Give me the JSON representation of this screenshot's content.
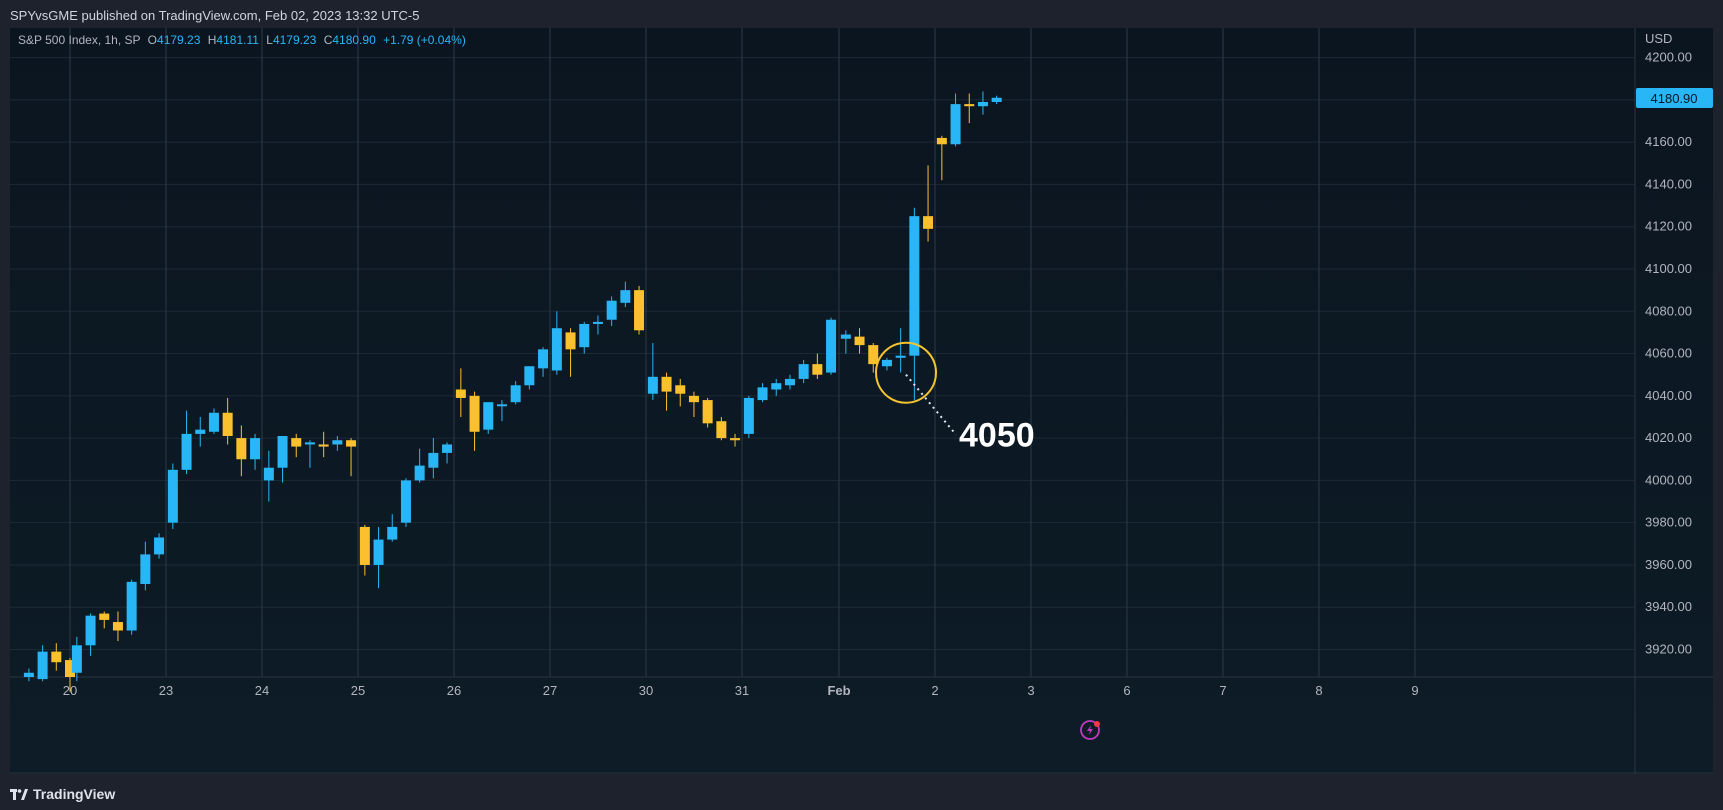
{
  "header": {
    "published_by": "SPYvsGME published on TradingView.com, Feb 02, 2023 13:32 UTC-5"
  },
  "legend": {
    "symbol": "S&P 500 Index, 1h, SP",
    "open_label": "O",
    "open": "4179.23",
    "high_label": "H",
    "high": "4181.11",
    "low_label": "L",
    "low": "4179.23",
    "close_label": "C",
    "close": "4180.90",
    "change": "+1.79 (+0.04%)"
  },
  "footer": {
    "brand": "TradingView"
  },
  "colors": {
    "up": "#29b6f6",
    "down": "#fbc02d",
    "annotation_circle": "#f4c430",
    "price_tag": "#29b6f6"
  },
  "icons": [
    "lightning-icon",
    "tradingview-logo-icon"
  ],
  "chart_data": {
    "type": "candlestick",
    "currency": "USD",
    "ylim": [
      3907,
      4214
    ],
    "y_ticks": [
      "4200.00",
      "4180.00",
      "4160.00",
      "4140.00",
      "4120.00",
      "4100.00",
      "4080.00",
      "4060.00",
      "4040.00",
      "4020.00",
      "4000.00",
      "3980.00",
      "3960.00",
      "3940.00",
      "3920.00"
    ],
    "x_ticks": [
      "20",
      "23",
      "24",
      "25",
      "26",
      "27",
      "30",
      "31",
      "Feb",
      "2",
      "3",
      "6",
      "7",
      "8",
      "9"
    ],
    "last_price": "4180.90",
    "annotation": {
      "text": "4050",
      "price": 4050
    },
    "grid": true,
    "series": [
      {
        "o": 3907,
        "h": 3911,
        "l": 3905,
        "c": 3909
      },
      {
        "o": 3906,
        "h": 3922,
        "l": 3905,
        "c": 3919
      },
      {
        "o": 3919,
        "h": 3923,
        "l": 3910,
        "c": 3914
      },
      {
        "o": 3915,
        "h": 3916,
        "l": 3900,
        "c": 3907
      },
      {
        "o": 3909,
        "h": 3926,
        "l": 3905,
        "c": 3922
      },
      {
        "o": 3922,
        "h": 3937,
        "l": 3917,
        "c": 3936
      },
      {
        "o": 3937,
        "h": 3938,
        "l": 3930,
        "c": 3934
      },
      {
        "o": 3933,
        "h": 3938,
        "l": 3924,
        "c": 3929
      },
      {
        "o": 3929,
        "h": 3953,
        "l": 3927,
        "c": 3952
      },
      {
        "o": 3951,
        "h": 3971,
        "l": 3948,
        "c": 3965
      },
      {
        "o": 3965,
        "h": 3975,
        "l": 3963,
        "c": 3973
      },
      {
        "o": 3980,
        "h": 4008,
        "l": 3977,
        "c": 4005
      },
      {
        "o": 4005,
        "h": 4033,
        "l": 4003,
        "c": 4022
      },
      {
        "o": 4022,
        "h": 4030,
        "l": 4016,
        "c": 4024
      },
      {
        "o": 4023,
        "h": 4034,
        "l": 4022,
        "c": 4032
      },
      {
        "o": 4032,
        "h": 4039,
        "l": 4017,
        "c": 4021
      },
      {
        "o": 4020,
        "h": 4026,
        "l": 4002,
        "c": 4010
      },
      {
        "o": 4010,
        "h": 4022,
        "l": 4005,
        "c": 4020
      },
      {
        "o": 4000,
        "h": 4014,
        "l": 3990,
        "c": 4006
      },
      {
        "o": 4006,
        "h": 4021,
        "l": 3999,
        "c": 4021
      },
      {
        "o": 4020,
        "h": 4022,
        "l": 4011,
        "c": 4016
      },
      {
        "o": 4017,
        "h": 4019,
        "l": 4006,
        "c": 4018
      },
      {
        "o": 4017,
        "h": 4023,
        "l": 4011,
        "c": 4016
      },
      {
        "o": 4017,
        "h": 4021,
        "l": 4014,
        "c": 4019
      },
      {
        "o": 4019,
        "h": 4020,
        "l": 4002,
        "c": 4016
      },
      {
        "o": 3978,
        "h": 3979,
        "l": 3955,
        "c": 3960
      },
      {
        "o": 3960,
        "h": 3978,
        "l": 3949,
        "c": 3972
      },
      {
        "o": 3972,
        "h": 3984,
        "l": 3971,
        "c": 3978
      },
      {
        "o": 3980,
        "h": 4001,
        "l": 3978,
        "c": 4000
      },
      {
        "o": 4000,
        "h": 4015,
        "l": 3999,
        "c": 4007
      },
      {
        "o": 4006,
        "h": 4020,
        "l": 4001,
        "c": 4013
      },
      {
        "o": 4013,
        "h": 4018,
        "l": 4008,
        "c": 4017
      },
      {
        "o": 4043,
        "h": 4053,
        "l": 4030,
        "c": 4039
      },
      {
        "o": 4040,
        "h": 4042,
        "l": 4014,
        "c": 4023
      },
      {
        "o": 4024,
        "h": 4037,
        "l": 4022,
        "c": 4037
      },
      {
        "o": 4036,
        "h": 4038,
        "l": 4028,
        "c": 4036
      },
      {
        "o": 4037,
        "h": 4047,
        "l": 4036,
        "c": 4045
      },
      {
        "o": 4045,
        "h": 4054,
        "l": 4043,
        "c": 4054
      },
      {
        "o": 4053,
        "h": 4063,
        "l": 4049,
        "c": 4062
      },
      {
        "o": 4052,
        "h": 4080,
        "l": 4050,
        "c": 4072
      },
      {
        "o": 4070,
        "h": 4072,
        "l": 4049,
        "c": 4062
      },
      {
        "o": 4063,
        "h": 4075,
        "l": 4060,
        "c": 4074
      },
      {
        "o": 4074,
        "h": 4078,
        "l": 4069,
        "c": 4075
      },
      {
        "o": 4076,
        "h": 4087,
        "l": 4073,
        "c": 4085
      },
      {
        "o": 4084,
        "h": 4094,
        "l": 4082,
        "c": 4090
      },
      {
        "o": 4090,
        "h": 4092,
        "l": 4069,
        "c": 4071
      },
      {
        "o": 4041,
        "h": 4065,
        "l": 4038,
        "c": 4049
      },
      {
        "o": 4049,
        "h": 4051,
        "l": 4033,
        "c": 4042
      },
      {
        "o": 4045,
        "h": 4048,
        "l": 4035,
        "c": 4041
      },
      {
        "o": 4040,
        "h": 4042,
        "l": 4030,
        "c": 4037
      },
      {
        "o": 4038,
        "h": 4039,
        "l": 4025,
        "c": 4027
      },
      {
        "o": 4028,
        "h": 4030,
        "l": 4019,
        "c": 4020
      },
      {
        "o": 4020,
        "h": 4022,
        "l": 4016,
        "c": 4019
      },
      {
        "o": 4022,
        "h": 4040,
        "l": 4020,
        "c": 4039
      },
      {
        "o": 4038,
        "h": 4046,
        "l": 4037,
        "c": 4044
      },
      {
        "o": 4043,
        "h": 4048,
        "l": 4040,
        "c": 4046
      },
      {
        "o": 4045,
        "h": 4050,
        "l": 4043,
        "c": 4048
      },
      {
        "o": 4048,
        "h": 4057,
        "l": 4046,
        "c": 4055
      },
      {
        "o": 4055,
        "h": 4060,
        "l": 4048,
        "c": 4050
      },
      {
        "o": 4051,
        "h": 4077,
        "l": 4050,
        "c": 4076
      },
      {
        "o": 4067,
        "h": 4071,
        "l": 4060,
        "c": 4069
      },
      {
        "o": 4068,
        "h": 4072,
        "l": 4060,
        "c": 4064
      },
      {
        "o": 4064,
        "h": 4065,
        "l": 4051,
        "c": 4055
      },
      {
        "o": 4054,
        "h": 4058,
        "l": 4052,
        "c": 4057
      },
      {
        "o": 4058,
        "h": 4072,
        "l": 4051,
        "c": 4059
      },
      {
        "o": 4059,
        "h": 4129,
        "l": 4038,
        "c": 4125
      },
      {
        "o": 4125,
        "h": 4149,
        "l": 4113,
        "c": 4119
      },
      {
        "o": 4162,
        "h": 4163,
        "l": 4142,
        "c": 4159
      },
      {
        "o": 4159,
        "h": 4183,
        "l": 4158,
        "c": 4178
      },
      {
        "o": 4178,
        "h": 4183,
        "l": 4169,
        "c": 4177
      },
      {
        "o": 4177,
        "h": 4184,
        "l": 4173,
        "c": 4179
      },
      {
        "o": 4179,
        "h": 4182,
        "l": 4178,
        "c": 4181
      }
    ]
  }
}
